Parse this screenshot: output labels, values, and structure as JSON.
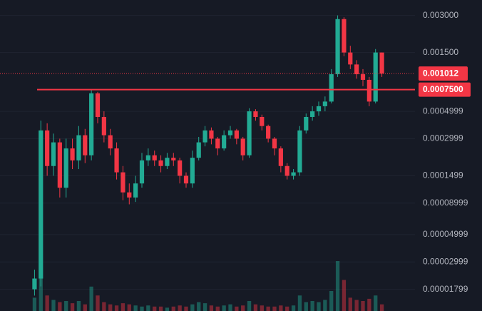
{
  "chart_data": {
    "type": "candlestick",
    "log_scale": true,
    "grid": true,
    "up_color": "#22ab94",
    "down_color": "#f23645",
    "background": "#161a25",
    "grid_color": "#1f2431",
    "label_color": "#b2b5be",
    "ylim": [
      1.2e-05,
      0.004
    ],
    "yticks": [
      {
        "value": 0.003,
        "label": "0.003000"
      },
      {
        "value": 0.0015,
        "label": "0.001500"
      },
      {
        "value": 0.0004999,
        "label": "0.0004999"
      },
      {
        "value": 0.0002999,
        "label": "0.0002999"
      },
      {
        "value": 0.0001499,
        "label": "0.0001499"
      },
      {
        "value": 8.999e-05,
        "label": "0.00008999"
      },
      {
        "value": 4.999e-05,
        "label": "0.00004999"
      },
      {
        "value": 2.999e-05,
        "label": "0.00002999"
      },
      {
        "value": 1.799e-05,
        "label": "0.00001799"
      }
    ],
    "current_price": {
      "value": 0.001012,
      "label": "0.001012"
    },
    "horizontal_line": {
      "value": 0.00075,
      "label": "0.0007500"
    },
    "open": [
      1.8e-05,
      2.2e-05,
      0.00035,
      0.00018,
      0.00028,
      0.00012,
      0.00025,
      0.0002,
      0.00032,
      0.00022,
      0.0007,
      0.00045,
      0.00032,
      0.00025,
      0.00016,
      0.00011,
      0.0001,
      0.00013,
      0.0002,
      0.00022,
      0.0002,
      0.00018,
      0.00021,
      0.0002,
      0.00015,
      0.00013,
      0.00021,
      0.00028,
      0.00035,
      0.0003,
      0.00025,
      0.00032,
      0.00035,
      0.0003,
      0.00022,
      0.0005,
      0.00045,
      0.00038,
      0.0003,
      0.00025,
      0.00018,
      0.00015,
      0.00016,
      0.00035,
      0.00045,
      0.0005,
      0.00055,
      0.0006,
      0.001,
      0.0028,
      0.0015,
      0.0012,
      0.001,
      0.0009,
      0.0006,
      0.0015
    ],
    "high": [
      2.6e-05,
      0.00042,
      0.0004,
      0.00033,
      0.0003,
      0.0003,
      0.0003,
      0.00038,
      0.00036,
      0.00075,
      0.00072,
      0.0005,
      0.00036,
      0.00028,
      0.00018,
      0.00013,
      0.00015,
      0.00023,
      0.00025,
      0.00024,
      0.00022,
      0.00023,
      0.00023,
      0.00021,
      0.00016,
      0.00024,
      0.00031,
      0.00038,
      0.00037,
      0.00031,
      0.00035,
      0.00038,
      0.00036,
      0.00031,
      0.00053,
      0.00052,
      0.00047,
      0.00039,
      0.00031,
      0.00026,
      0.00019,
      0.00017,
      0.00038,
      0.00048,
      0.00055,
      0.0006,
      0.00066,
      0.0011,
      0.003,
      0.0029,
      0.0017,
      0.0013,
      0.0011,
      0.00095,
      0.0016,
      0.0015
    ],
    "low": [
      1.6e-05,
      1.9e-05,
      0.00015,
      0.00015,
      0.0001,
      0.0001,
      0.00017,
      0.00017,
      0.00019,
      0.0002,
      0.0004,
      0.00028,
      0.00022,
      0.00014,
      9.5e-05,
      8.8e-05,
      9.2e-05,
      0.00012,
      0.00018,
      0.00018,
      0.00016,
      0.00017,
      0.00018,
      0.00013,
      0.00012,
      0.00012,
      0.0002,
      0.00026,
      0.00027,
      0.00022,
      0.00024,
      0.0003,
      0.00027,
      0.0002,
      0.00021,
      0.00042,
      0.00035,
      0.00028,
      0.00022,
      0.00016,
      0.00014,
      0.00014,
      0.00015,
      0.00033,
      0.00042,
      0.00046,
      0.0005,
      0.00058,
      0.00095,
      0.0014,
      0.0011,
      0.00092,
      0.0008,
      0.00055,
      0.00058,
      0.00095
    ],
    "close": [
      2.2e-05,
      0.00035,
      0.00018,
      0.00028,
      0.00012,
      0.00025,
      0.0002,
      0.00032,
      0.00022,
      0.0007,
      0.00045,
      0.00032,
      0.00025,
      0.00016,
      0.00011,
      0.0001,
      0.00013,
      0.0002,
      0.00022,
      0.0002,
      0.00018,
      0.00021,
      0.0002,
      0.00015,
      0.00013,
      0.00021,
      0.00028,
      0.00035,
      0.0003,
      0.00025,
      0.00032,
      0.00035,
      0.0003,
      0.00022,
      0.0005,
      0.00045,
      0.00038,
      0.0003,
      0.00025,
      0.00018,
      0.00015,
      0.00016,
      0.00035,
      0.00045,
      0.0005,
      0.00055,
      0.0006,
      0.001,
      0.0028,
      0.0015,
      0.0012,
      0.001,
      0.0009,
      0.0006,
      0.0015,
      0.001012
    ],
    "volume": [
      12,
      30,
      14,
      10,
      8,
      9,
      7,
      9,
      6,
      22,
      14,
      8,
      6,
      5,
      7,
      6,
      5,
      4,
      5,
      4,
      4,
      3,
      4,
      5,
      4,
      6,
      8,
      7,
      5,
      4,
      5,
      6,
      4,
      5,
      9,
      6,
      5,
      4,
      4,
      5,
      4,
      5,
      14,
      8,
      9,
      8,
      10,
      18,
      45,
      28,
      12,
      10,
      9,
      11,
      14,
      6
    ]
  }
}
